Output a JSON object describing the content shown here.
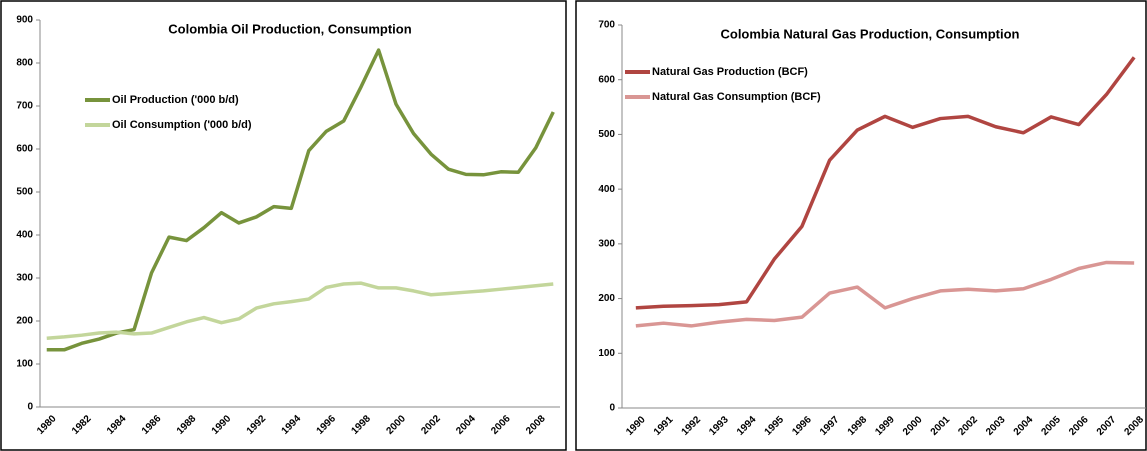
{
  "chart_data": [
    {
      "type": "line",
      "title": "Colombia Oil Production, Consumption",
      "categories": [
        "1980",
        null,
        "1982",
        null,
        "1984",
        null,
        "1986",
        null,
        "1988",
        null,
        "1990",
        null,
        "1992",
        null,
        "1994",
        null,
        "1996",
        null,
        "1998",
        null,
        "2000",
        null,
        "2002",
        null,
        "2004",
        null,
        "2006",
        null,
        "2008",
        null
      ],
      "series": [
        {
          "name": "Oil Production ('000 b/d)",
          "color": "#77933c",
          "values": [
            133,
            133,
            148,
            158,
            172,
            180,
            312,
            395,
            387,
            417,
            452,
            428,
            442,
            466,
            462,
            596,
            641,
            665,
            745,
            830,
            704,
            636,
            588,
            553,
            541,
            540,
            547,
            546,
            603,
            686
          ]
        },
        {
          "name": "Oil Consumption ('000 b/d)",
          "color": "#c3d69b",
          "values": [
            160,
            163,
            167,
            172,
            174,
            170,
            172,
            185,
            198,
            208,
            196,
            205,
            230,
            240,
            245,
            251,
            278,
            286,
            288,
            277,
            277,
            270,
            261,
            264,
            267,
            270,
            274,
            278,
            282,
            286
          ]
        }
      ],
      "ylim": [
        0,
        900
      ],
      "yticks": [
        0,
        100,
        200,
        300,
        400,
        500,
        600,
        700,
        800,
        900
      ],
      "legend": "upper left"
    },
    {
      "type": "line",
      "title": "Colombia Natural Gas Production, Consumption",
      "categories": [
        "1990",
        "1991",
        "1992",
        "1993",
        "1994",
        "1995",
        "1996",
        "1997",
        "1998",
        "1999",
        "2000",
        "2001",
        "2002",
        "2003",
        "2004",
        "2005",
        "2006",
        "2007",
        "2008"
      ],
      "series": [
        {
          "name": "Natural Gas Production (BCF)",
          "color": "#b04541",
          "values": [
            183,
            186,
            187,
            189,
            194,
            272,
            332,
            453,
            508,
            533,
            513,
            529,
            533,
            514,
            503,
            532,
            518,
            573,
            641
          ]
        },
        {
          "name": "Natural Gas Consumption (BCF)",
          "color": "#d99694",
          "values": [
            150,
            155,
            150,
            157,
            162,
            160,
            166,
            210,
            221,
            183,
            200,
            214,
            217,
            214,
            218,
            235,
            255,
            266,
            265
          ]
        }
      ],
      "ylim": [
        0,
        700
      ],
      "yticks": [
        0,
        100,
        200,
        300,
        400,
        500,
        600,
        700
      ],
      "legend": "upper left"
    }
  ]
}
